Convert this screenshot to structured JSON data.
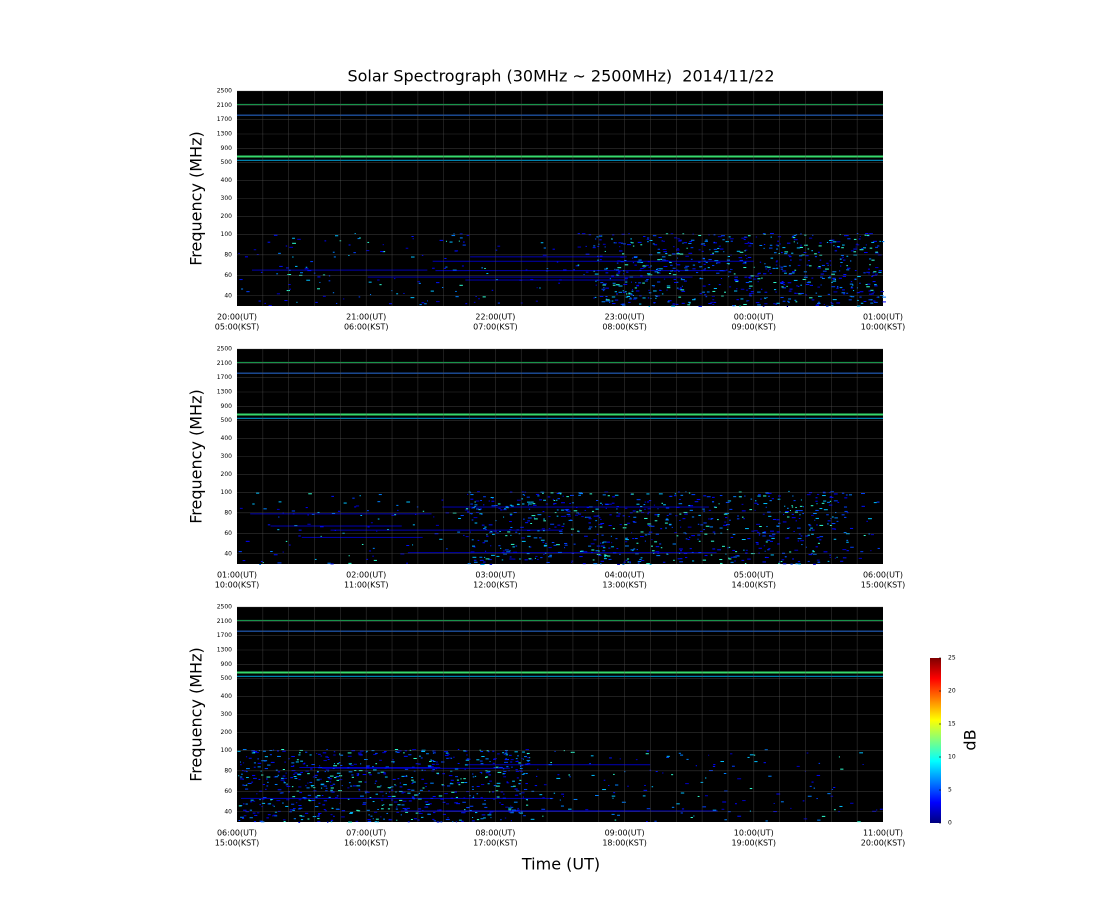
{
  "figure": {
    "title": "Solar Spectrograph (30MHz ~ 2500MHz)  2014/11/22",
    "xlabel": "Time (UT)"
  },
  "chart_data": [
    {
      "type": "spectrogram",
      "ylabel": "Frequency (MHz)",
      "ylim": [
        30,
        2500
      ],
      "yticks": [
        40,
        60,
        80,
        100,
        200,
        300,
        400,
        500,
        900,
        1300,
        1700,
        2100,
        2500
      ],
      "xtick_labels": [
        [
          "20:00(UT)",
          "05:00(KST)"
        ],
        [
          "21:00(UT)",
          "06:00(KST)"
        ],
        [
          "22:00(UT)",
          "07:00(KST)"
        ],
        [
          "23:00(UT)",
          "08:00(KST)"
        ],
        [
          "00:00(UT)",
          "09:00(KST)"
        ],
        [
          "01:00(UT)",
          "10:00(KST)"
        ]
      ]
    },
    {
      "type": "spectrogram",
      "ylabel": "Frequency (MHz)",
      "ylim": [
        30,
        2500
      ],
      "yticks": [
        40,
        60,
        80,
        100,
        200,
        300,
        400,
        500,
        900,
        1300,
        1700,
        2100,
        2500
      ],
      "xtick_labels": [
        [
          "01:00(UT)",
          "10:00(KST)"
        ],
        [
          "02:00(UT)",
          "11:00(KST)"
        ],
        [
          "03:00(UT)",
          "12:00(KST)"
        ],
        [
          "04:00(UT)",
          "13:00(KST)"
        ],
        [
          "05:00(UT)",
          "14:00(KST)"
        ],
        [
          "06:00(UT)",
          "15:00(KST)"
        ]
      ]
    },
    {
      "type": "spectrogram",
      "ylabel": "Frequency (MHz)",
      "ylim": [
        30,
        2500
      ],
      "yticks": [
        40,
        60,
        80,
        100,
        200,
        300,
        400,
        500,
        900,
        1300,
        1700,
        2100,
        2500
      ],
      "xtick_labels": [
        [
          "06:00(UT)",
          "15:00(KST)"
        ],
        [
          "07:00(UT)",
          "16:00(KST)"
        ],
        [
          "08:00(UT)",
          "17:00(KST)"
        ],
        [
          "09:00(UT)",
          "18:00(KST)"
        ],
        [
          "10:00(UT)",
          "19:00(KST)"
        ],
        [
          "11:00(UT)",
          "20:00(KST)"
        ]
      ]
    }
  ],
  "colorbar": {
    "label": "dB",
    "colormap": "jet",
    "lim": [
      0,
      25
    ],
    "ticks": [
      0,
      5,
      10,
      15,
      20,
      25
    ]
  }
}
